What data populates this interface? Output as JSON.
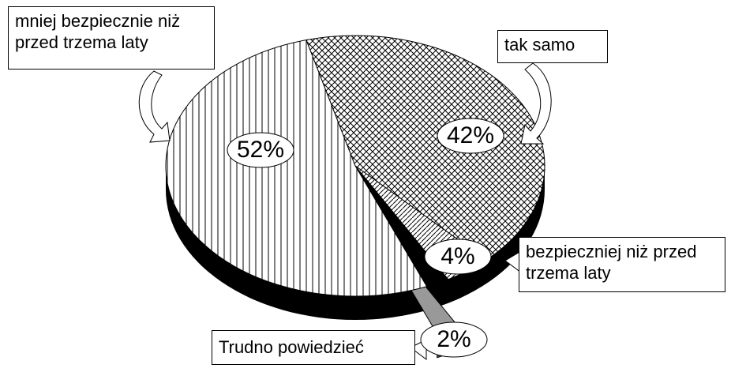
{
  "chart_data": {
    "type": "pie",
    "categories": [
      "tak samo",
      "bezpieczniej niż przed trzema laty",
      "Trudno powiedzieć",
      "mniej bezpiecznie niż przed trzema laty"
    ],
    "values": [
      42,
      4,
      2,
      52
    ],
    "value_labels": [
      "42%",
      "4%",
      "2%",
      "52%"
    ]
  }
}
